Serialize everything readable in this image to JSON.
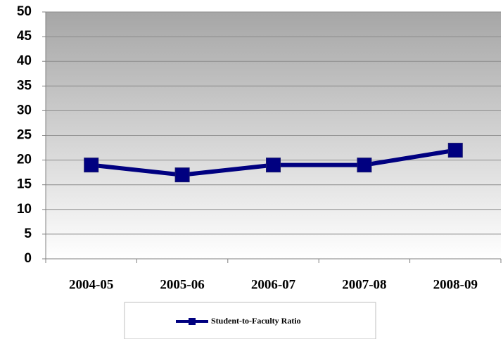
{
  "chart_data": {
    "type": "line",
    "categories": [
      "2004-05",
      "2005-06",
      "2006-07",
      "2007-08",
      "2008-09"
    ],
    "series": [
      {
        "name": "Student-to-Faculty Ratio",
        "color": "#000080",
        "values": [
          19,
          17,
          19,
          19,
          22
        ]
      }
    ],
    "ylim": [
      0,
      50
    ],
    "yticks": [
      0,
      5,
      10,
      15,
      20,
      25,
      30,
      35,
      40,
      45,
      50
    ],
    "grid": true,
    "legend": "bottom"
  }
}
